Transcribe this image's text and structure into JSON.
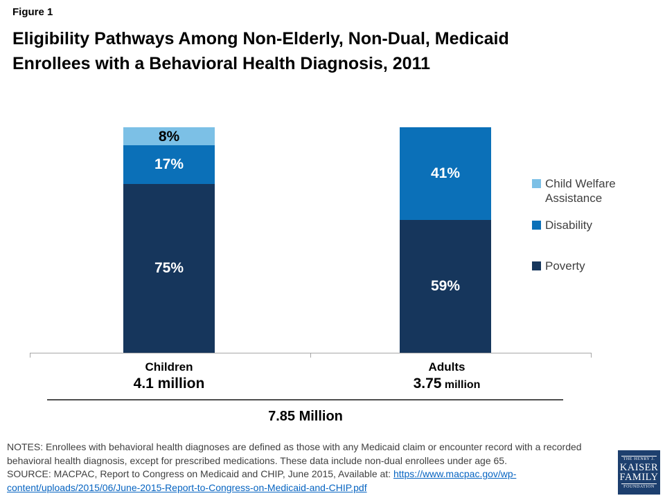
{
  "figure_label": "Figure 1",
  "title": {
    "line1": "Eligibility Pathways Among Non-Elderly, Non-Dual, Medicaid",
    "line2": "Enrollees with a Behavioral Health Diagnosis, 2011"
  },
  "chart_data": {
    "type": "bar",
    "subtype": "100-percent-stacked-column",
    "title": "Eligibility Pathways Among Non-Elderly, Non-Dual, Medicaid Enrollees with a Behavioral Health Diagnosis, 2011",
    "categories": [
      "Children",
      "Adults"
    ],
    "category_totals": [
      {
        "big": "4.1 million",
        "small": ""
      },
      {
        "big": "3.75",
        "small": " million"
      }
    ],
    "series": [
      {
        "name": "Poverty",
        "color": "#16365C",
        "label_color": "#FFFFFF",
        "values": [
          75,
          59
        ]
      },
      {
        "name": "Disability",
        "color": "#0B70B8",
        "label_color": "#FFFFFF",
        "values": [
          17,
          41
        ]
      },
      {
        "name": "Child Welfare Assistance",
        "color": "#7CC0E6",
        "label_color": "#000000",
        "values": [
          8,
          0
        ]
      }
    ],
    "value_suffix": "%",
    "total_label": "7.85 Million",
    "ylim": [
      0,
      100
    ],
    "grid": false,
    "legend": {
      "position": "right",
      "items": [
        {
          "label": "Child Welfare Assistance",
          "color": "#7CC0E6"
        },
        {
          "label": "Disability",
          "color": "#0B70B8"
        },
        {
          "label": "Poverty",
          "color": "#16365C"
        }
      ]
    }
  },
  "notes": {
    "notes_text": "NOTES: Enrollees with behavioral health diagnoses are defined as those with any Medicaid claim or encounter record with a recorded behavioral health diagnosis, except for prescribed medications. These data include non-dual enrollees under age 65.",
    "source_text": "SOURCE: MACPAC, Report to Congress on Medicaid and CHIP, June 2015, Available at: ",
    "source_link_line1": "https://www.macpac.gov/wp-",
    "source_link_line2": "content/uploads/2015/06/June-2015-Report-to-Congress-on-Medicaid-and-CHIP.pdf",
    "source_link_full": "https://www.macpac.gov/wp-content/uploads/2015/06/June-2015-Report-to-Congress-on-Medicaid-and-CHIP.pdf"
  },
  "logo": {
    "line1": "THE HENRY J.",
    "line2": "KAISER",
    "line3": "FAMILY",
    "line4": "FOUNDATION"
  },
  "colors": {
    "link_blue": "#0563C1",
    "logo_navy": "#1D3F6E",
    "notes_text": "#3F3F3F",
    "axis_gray": "#A6A6A6"
  }
}
